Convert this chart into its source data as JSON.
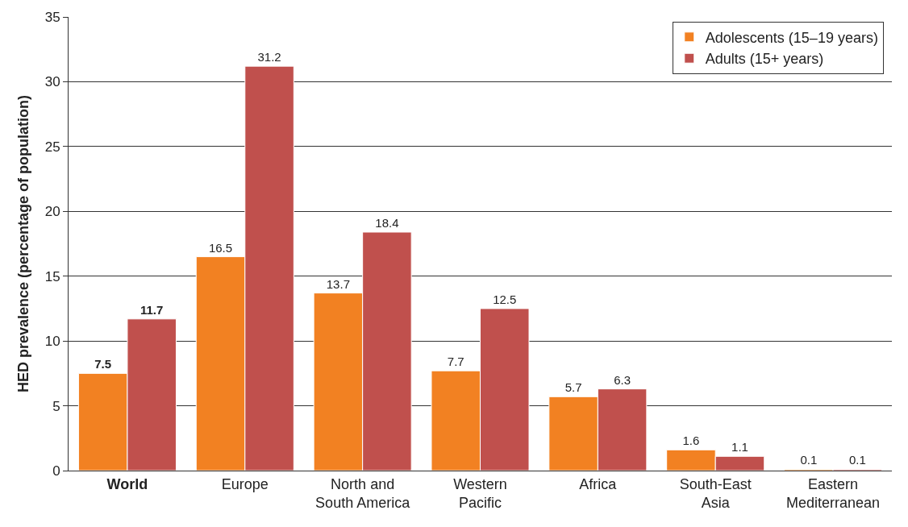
{
  "chart_data": {
    "type": "bar",
    "ylabel": "HED prevalence (percentage of population)",
    "categories": [
      "World",
      "Europe",
      "North and South America",
      "Western Pacific",
      "Africa",
      "South-East Asia",
      "Eastern Mediterranean"
    ],
    "series": [
      {
        "name": "Adolescents (15–19 years)",
        "color": "#f28122",
        "values": [
          7.5,
          16.5,
          13.7,
          7.7,
          5.7,
          1.6,
          0.1
        ]
      },
      {
        "name": "Adults (15+ years)",
        "color": "#c0504d",
        "values": [
          11.7,
          31.2,
          18.4,
          12.5,
          6.3,
          1.1,
          0.1
        ]
      }
    ],
    "ylim": [
      0,
      35
    ],
    "yticks": [
      0,
      5,
      10,
      15,
      20,
      25,
      30,
      35
    ],
    "grid": "y",
    "legend": "top right",
    "data_labels": true
  }
}
